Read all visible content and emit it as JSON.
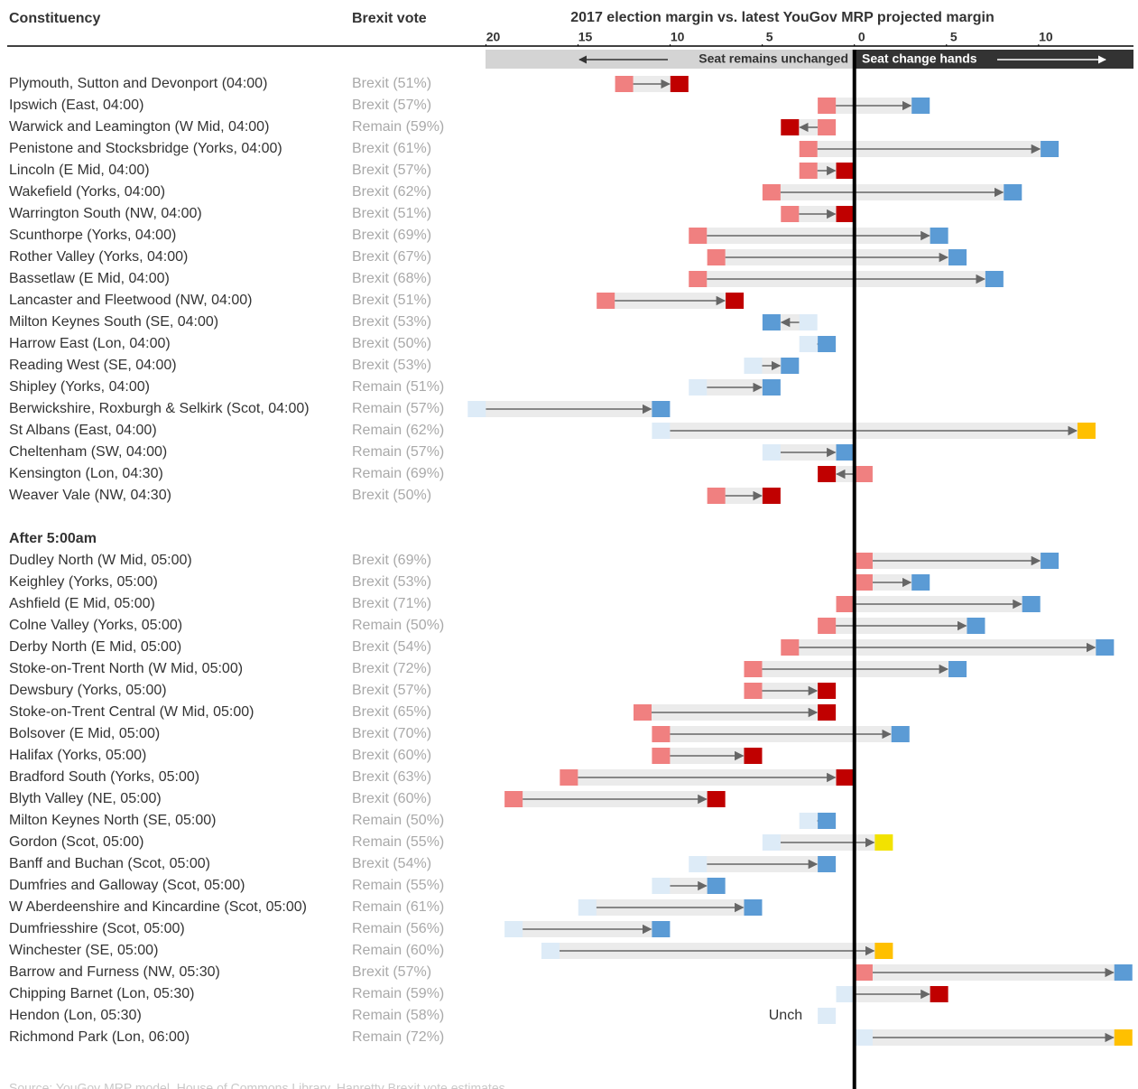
{
  "chart_data": {
    "type": "arrow",
    "col_name": "Constituency",
    "col_brexit": "Brexit vote",
    "title": "2017 election margin vs. latest YouGov MRP projected margin",
    "left_note": "Seat remains unchanged",
    "right_note": "Seat change hands",
    "source": "Source: YouGov MRP model, House of Commons Library, Hanretty Brexit vote estimates",
    "xlim": [
      -21.2,
      15.2
    ],
    "xticks": [
      {
        "value": -20,
        "label": "20"
      },
      {
        "value": -15,
        "label": "15"
      },
      {
        "value": -10,
        "label": "10"
      },
      {
        "value": -5,
        "label": "5"
      },
      0,
      5,
      10
    ],
    "groups": [
      {
        "rows": [
          {
            "name": "Plymouth, Sutton and Devonport (04:00)",
            "brexit": "Brexit (51%)",
            "start": -12.5,
            "end": -9.5,
            "start_color": "#f08080",
            "end_color": "#c00000"
          },
          {
            "name": "Ipswich (East, 04:00)",
            "brexit": "Brexit (57%)",
            "start": -1.5,
            "end": 3.6,
            "start_color": "#f08080",
            "end_color": "#5b9bd5"
          },
          {
            "name": "Warwick and Leamington (W Mid, 04:00)",
            "brexit": "Remain (59%)",
            "start": -1.5,
            "end": -3.5,
            "start_color": "#f08080",
            "end_color": "#c00000"
          },
          {
            "name": "Penistone and Stocksbridge (Yorks, 04:00)",
            "brexit": "Brexit (61%)",
            "start": -2.5,
            "end": 10.6,
            "start_color": "#f08080",
            "end_color": "#5b9bd5"
          },
          {
            "name": "Lincoln (E Mid, 04:00)",
            "brexit": "Brexit (57%)",
            "start": -2.5,
            "end": -0.5,
            "start_color": "#f08080",
            "end_color": "#c00000"
          },
          {
            "name": "Wakefield (Yorks, 04:00)",
            "brexit": "Brexit (62%)",
            "start": -4.5,
            "end": 8.6,
            "start_color": "#f08080",
            "end_color": "#5b9bd5"
          },
          {
            "name": "Warrington South (NW, 04:00)",
            "brexit": "Brexit (51%)",
            "start": -3.5,
            "end": -0.5,
            "start_color": "#f08080",
            "end_color": "#c00000"
          },
          {
            "name": "Scunthorpe (Yorks, 04:00)",
            "brexit": "Brexit (69%)",
            "start": -8.5,
            "end": 4.6,
            "start_color": "#f08080",
            "end_color": "#5b9bd5"
          },
          {
            "name": "Rother Valley (Yorks, 04:00)",
            "brexit": "Brexit (67%)",
            "start": -7.5,
            "end": 5.6,
            "start_color": "#f08080",
            "end_color": "#5b9bd5"
          },
          {
            "name": "Bassetlaw (E Mid, 04:00)",
            "brexit": "Brexit (68%)",
            "start": -8.5,
            "end": 7.6,
            "start_color": "#f08080",
            "end_color": "#5b9bd5"
          },
          {
            "name": "Lancaster and Fleetwood (NW, 04:00)",
            "brexit": "Brexit (51%)",
            "start": -13.5,
            "end": -6.5,
            "start_color": "#f08080",
            "end_color": "#c00000"
          },
          {
            "name": "Milton Keynes South (SE, 04:00)",
            "brexit": "Brexit (53%)",
            "start": -2.5,
            "end": -4.5,
            "start_color": "#ddebf7",
            "end_color": "#5b9bd5"
          },
          {
            "name": "Harrow East (Lon, 04:00)",
            "brexit": "Brexit (50%)",
            "start": -2.5,
            "end": -1.5,
            "start_color": "#ddebf7",
            "end_color": "#5b9bd5"
          },
          {
            "name": "Reading West (SE, 04:00)",
            "brexit": "Brexit (53%)",
            "start": -5.5,
            "end": -3.5,
            "start_color": "#ddebf7",
            "end_color": "#5b9bd5"
          },
          {
            "name": "Shipley (Yorks, 04:00)",
            "brexit": "Remain (51%)",
            "start": -8.5,
            "end": -4.5,
            "start_color": "#ddebf7",
            "end_color": "#5b9bd5"
          },
          {
            "name": "Berwickshire, Roxburgh & Selkirk (Scot, 04:00)",
            "brexit": "Remain (57%)",
            "start": -20.5,
            "end": -10.5,
            "start_color": "#ddebf7",
            "end_color": "#5b9bd5"
          },
          {
            "name": "St Albans (East, 04:00)",
            "brexit": "Remain (62%)",
            "start": -10.5,
            "end": 12.6,
            "start_color": "#ddebf7",
            "end_color": "#ffc000"
          },
          {
            "name": "Cheltenham (SW, 04:00)",
            "brexit": "Remain (57%)",
            "start": -4.5,
            "end": -0.5,
            "start_color": "#ddebf7",
            "end_color": "#5b9bd5"
          },
          {
            "name": "Kensington (Lon, 04:30)",
            "brexit": "Remain (69%)",
            "start": 0.5,
            "end": -1.5,
            "start_color": "#f08080",
            "end_color": "#c00000"
          },
          {
            "name": "Weaver Vale (NW, 04:30)",
            "brexit": "Brexit (50%)",
            "start": -7.5,
            "end": -4.5,
            "start_color": "#f08080",
            "end_color": "#c00000"
          }
        ]
      },
      {
        "title": "After 5:00am",
        "rows": [
          {
            "name": "Dudley North (W Mid, 05:00)",
            "brexit": "Brexit (69%)",
            "start": 0.5,
            "end": 10.6,
            "start_color": "#f08080",
            "end_color": "#5b9bd5"
          },
          {
            "name": "Keighley (Yorks, 05:00)",
            "brexit": "Brexit (53%)",
            "start": 0.5,
            "end": 3.6,
            "start_color": "#f08080",
            "end_color": "#5b9bd5"
          },
          {
            "name": "Ashfield (E Mid, 05:00)",
            "brexit": "Brexit (71%)",
            "start": -0.5,
            "end": 9.6,
            "start_color": "#f08080",
            "end_color": "#5b9bd5"
          },
          {
            "name": "Colne Valley (Yorks, 05:00)",
            "brexit": "Remain (50%)",
            "start": -1.5,
            "end": 6.6,
            "start_color": "#f08080",
            "end_color": "#5b9bd5"
          },
          {
            "name": "Derby North (E Mid, 05:00)",
            "brexit": "Brexit (54%)",
            "start": -3.5,
            "end": 13.6,
            "start_color": "#f08080",
            "end_color": "#5b9bd5"
          },
          {
            "name": "Stoke-on-Trent North (W Mid, 05:00)",
            "brexit": "Brexit (72%)",
            "start": -5.5,
            "end": 5.6,
            "start_color": "#f08080",
            "end_color": "#5b9bd5"
          },
          {
            "name": "Dewsbury (Yorks, 05:00)",
            "brexit": "Brexit (57%)",
            "start": -5.5,
            "end": -1.5,
            "start_color": "#f08080",
            "end_color": "#c00000"
          },
          {
            "name": "Stoke-on-Trent Central (W Mid, 05:00)",
            "brexit": "Brexit (65%)",
            "start": -11.5,
            "end": -1.5,
            "start_color": "#f08080",
            "end_color": "#c00000"
          },
          {
            "name": "Bolsover (E Mid, 05:00)",
            "brexit": "Brexit (70%)",
            "start": -10.5,
            "end": 2.5,
            "start_color": "#f08080",
            "end_color": "#5b9bd5"
          },
          {
            "name": "Halifax (Yorks, 05:00)",
            "brexit": "Brexit (60%)",
            "start": -10.5,
            "end": -5.5,
            "start_color": "#f08080",
            "end_color": "#c00000"
          },
          {
            "name": "Bradford South (Yorks, 05:00)",
            "brexit": "Brexit (63%)",
            "start": -15.5,
            "end": -0.5,
            "start_color": "#f08080",
            "end_color": "#c00000"
          },
          {
            "name": "Blyth Valley (NE, 05:00)",
            "brexit": "Brexit (60%)",
            "start": -18.5,
            "end": -7.5,
            "start_color": "#f08080",
            "end_color": "#c00000"
          },
          {
            "name": "Milton Keynes North (SE, 05:00)",
            "brexit": "Remain (50%)",
            "start": -2.5,
            "end": -1.5,
            "start_color": "#ddebf7",
            "end_color": "#5b9bd5"
          },
          {
            "name": "Gordon (Scot, 05:00)",
            "brexit": "Remain (55%)",
            "start": -4.5,
            "end": 1.6,
            "start_color": "#ddebf7",
            "end_color": "#f2e200"
          },
          {
            "name": "Banff and Buchan (Scot, 05:00)",
            "brexit": "Brexit (54%)",
            "start": -8.5,
            "end": -1.5,
            "start_color": "#ddebf7",
            "end_color": "#5b9bd5"
          },
          {
            "name": "Dumfries and Galloway (Scot, 05:00)",
            "brexit": "Remain (55%)",
            "start": -10.5,
            "end": -7.5,
            "start_color": "#ddebf7",
            "end_color": "#5b9bd5"
          },
          {
            "name": "W Aberdeenshire and Kincardine (Scot, 05:00)",
            "brexit": "Remain (61%)",
            "start": -14.5,
            "end": -5.5,
            "start_color": "#ddebf7",
            "end_color": "#5b9bd5"
          },
          {
            "name": "Dumfriesshire (Scot, 05:00)",
            "brexit": "Remain (56%)",
            "start": -18.5,
            "end": -10.5,
            "start_color": "#ddebf7",
            "end_color": "#5b9bd5"
          },
          {
            "name": "Winchester (SE, 05:00)",
            "brexit": "Remain (60%)",
            "start": -16.5,
            "end": 1.6,
            "start_color": "#ddebf7",
            "end_color": "#ffc000"
          },
          {
            "name": "Barrow and Furness (NW, 05:30)",
            "brexit": "Brexit (57%)",
            "start": 0.5,
            "end": 14.6,
            "start_color": "#f08080",
            "end_color": "#5b9bd5"
          },
          {
            "name": "Chipping Barnet (Lon, 05:30)",
            "brexit": "Remain (59%)",
            "start": -0.5,
            "end": 4.6,
            "start_color": "#ddebf7",
            "end_color": "#c00000"
          },
          {
            "name": "Hendon (Lon, 05:30)",
            "brexit": "Remain (58%)",
            "start": -1.5,
            "end": null,
            "start_color": "#ddebf7",
            "note": "Unch"
          },
          {
            "name": "Richmond Park (Lon, 06:00)",
            "brexit": "Remain (72%)",
            "start": 0.5,
            "end": 14.6,
            "start_color": "#ddebf7",
            "end_color": "#ffc000"
          }
        ]
      }
    ]
  }
}
